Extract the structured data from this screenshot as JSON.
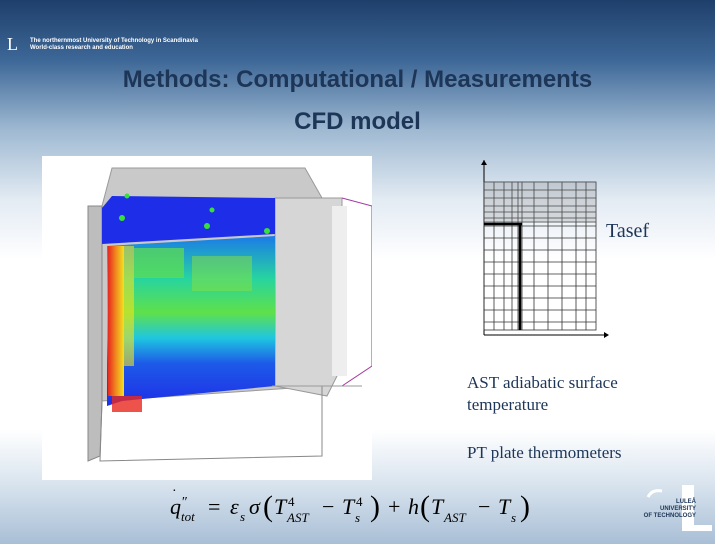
{
  "header": {
    "logo_letter": "L",
    "tagline_line1": "The northernmost University of Technology in Scandinavia",
    "tagline_line2": "World-class research and education"
  },
  "title": {
    "line1": "Methods: Computational / Measurements",
    "line2": "CFD model"
  },
  "labels": {
    "tasef": "Tasef",
    "ast_line1": "AST adiabatic surface",
    "ast_line2": "temperature",
    "pt": "PT plate thermometers"
  },
  "footer_logo": {
    "line1": "LULEÅ",
    "line2": "UNIVERSITY",
    "line3": "OF TECHNOLOGY"
  },
  "colors": {
    "title": "#1d3557",
    "header_band": "#1f3f6b",
    "cfd_blue": "#1e2ee8",
    "cfd_red": "#e8281e"
  },
  "icons": {
    "cfd_image": "cfd-simulation-image",
    "mesh_image": "tasef-mesh-grid"
  }
}
